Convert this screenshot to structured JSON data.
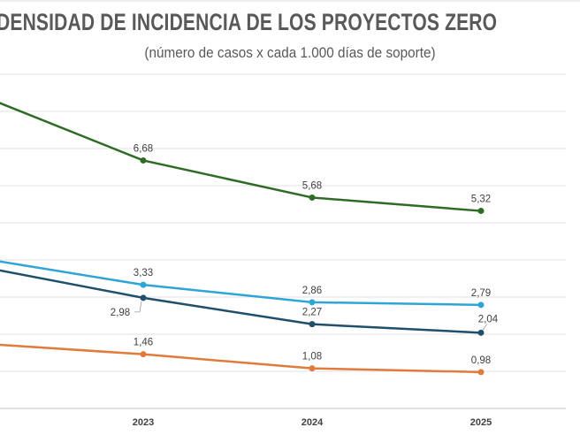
{
  "chart_data": {
    "type": "line",
    "title": "DENSIDAD DE INCIDENCIA DE LOS PROYECTOS ZERO",
    "subtitle": "(número de casos x cada 1.000 días de soporte)",
    "categories": [
      "",
      "2023",
      "2024",
      "2025"
    ],
    "ylim": [
      0,
      9
    ],
    "grid": true,
    "legend": "right (cropped)",
    "series": [
      {
        "color": "#2e6b25",
        "values": [
          8.5,
          6.68,
          5.68,
          5.32
        ],
        "labels": [
          "",
          "6,68",
          "5,68",
          "5,32"
        ]
      },
      {
        "color": "#2fa4d7",
        "values": [
          4.07,
          3.33,
          2.86,
          2.79
        ],
        "labels": [
          "",
          "3,33",
          "2,86",
          "2,79"
        ]
      },
      {
        "color": "#1f4f6b",
        "values": [
          3.85,
          2.98,
          2.27,
          2.04
        ],
        "labels": [
          "",
          "2,98",
          "2,27",
          "2,04"
        ]
      },
      {
        "color": "#e07b3c",
        "values": [
          1.76,
          1.46,
          1.08,
          0.98
        ],
        "labels": [
          "",
          "1,46",
          "1,08",
          "0,98"
        ]
      }
    ]
  }
}
